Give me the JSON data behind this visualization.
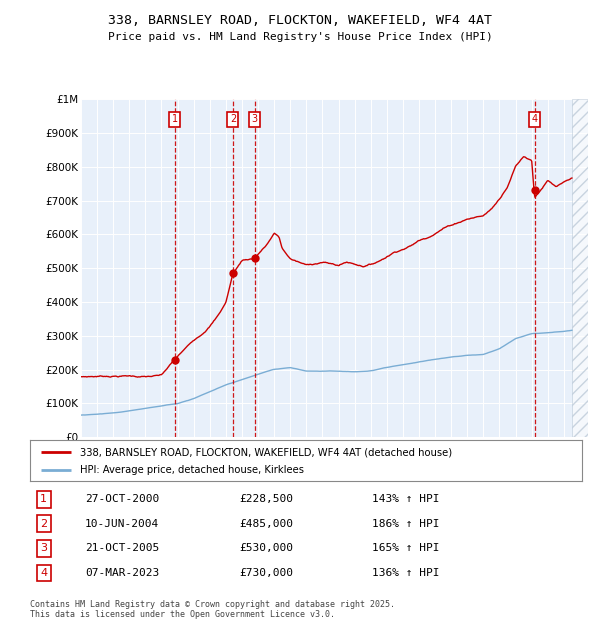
{
  "title": "338, BARNSLEY ROAD, FLOCKTON, WAKEFIELD, WF4 4AT",
  "subtitle": "Price paid vs. HM Land Registry's House Price Index (HPI)",
  "hpi_color": "#7aadd4",
  "price_color": "#cc0000",
  "annotation_color": "#cc0000",
  "plot_bg": "#e8f0fa",
  "ylim": [
    0,
    1000000
  ],
  "yticks": [
    0,
    100000,
    200000,
    300000,
    400000,
    500000,
    600000,
    700000,
    800000,
    900000,
    1000000
  ],
  "ytick_labels": [
    "£0",
    "£100K",
    "£200K",
    "£300K",
    "£400K",
    "£500K",
    "£600K",
    "£700K",
    "£800K",
    "£900K",
    "£1M"
  ],
  "xlim_start": 1995,
  "xlim_end": 2026.5,
  "hatch_start": 2025.5,
  "transactions": [
    {
      "num": 1,
      "date": "27-OCT-2000",
      "year": 2000.83,
      "price": 228500,
      "pct": "143%",
      "label": "1"
    },
    {
      "num": 2,
      "date": "10-JUN-2004",
      "year": 2004.44,
      "price": 485000,
      "pct": "186%",
      "label": "2"
    },
    {
      "num": 3,
      "date": "21-OCT-2005",
      "year": 2005.8,
      "price": 530000,
      "pct": "165%",
      "label": "3"
    },
    {
      "num": 4,
      "date": "07-MAR-2023",
      "year": 2023.18,
      "price": 730000,
      "pct": "136%",
      "label": "4"
    }
  ],
  "legend_label_price": "338, BARNSLEY ROAD, FLOCKTON, WAKEFIELD, WF4 4AT (detached house)",
  "legend_label_hpi": "HPI: Average price, detached house, Kirklees",
  "footer": "Contains HM Land Registry data © Crown copyright and database right 2025.\nThis data is licensed under the Open Government Licence v3.0.",
  "table_rows": [
    [
      "1",
      "27-OCT-2000",
      "£228,500",
      "143% ↑ HPI"
    ],
    [
      "2",
      "10-JUN-2004",
      "£485,000",
      "186% ↑ HPI"
    ],
    [
      "3",
      "21-OCT-2005",
      "£530,000",
      "165% ↑ HPI"
    ],
    [
      "4",
      "07-MAR-2023",
      "£730,000",
      "136% ↑ HPI"
    ]
  ]
}
